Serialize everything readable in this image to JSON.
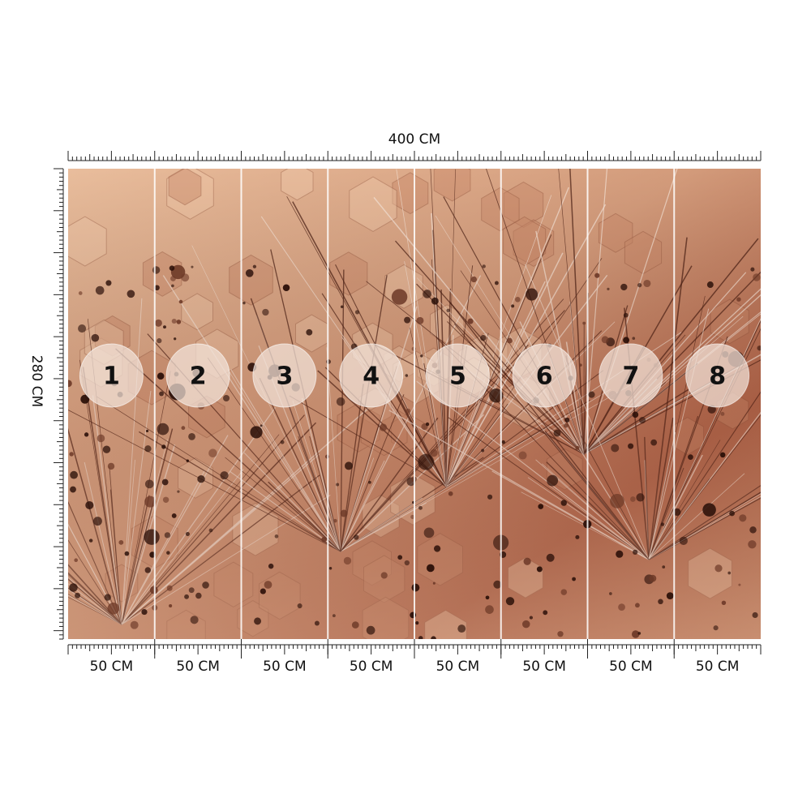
{
  "dimensions": {
    "width": "400 CM",
    "height": "280 CM"
  },
  "panels": [
    {
      "number": "1",
      "width": "50 CM"
    },
    {
      "number": "2",
      "width": "50 CM"
    },
    {
      "number": "3",
      "width": "50 CM"
    },
    {
      "number": "4",
      "width": "50 CM"
    },
    {
      "number": "5",
      "width": "50 CM"
    },
    {
      "number": "6",
      "width": "50 CM"
    },
    {
      "number": "7",
      "width": "50 CM"
    },
    {
      "number": "8",
      "width": "50 CM"
    }
  ]
}
